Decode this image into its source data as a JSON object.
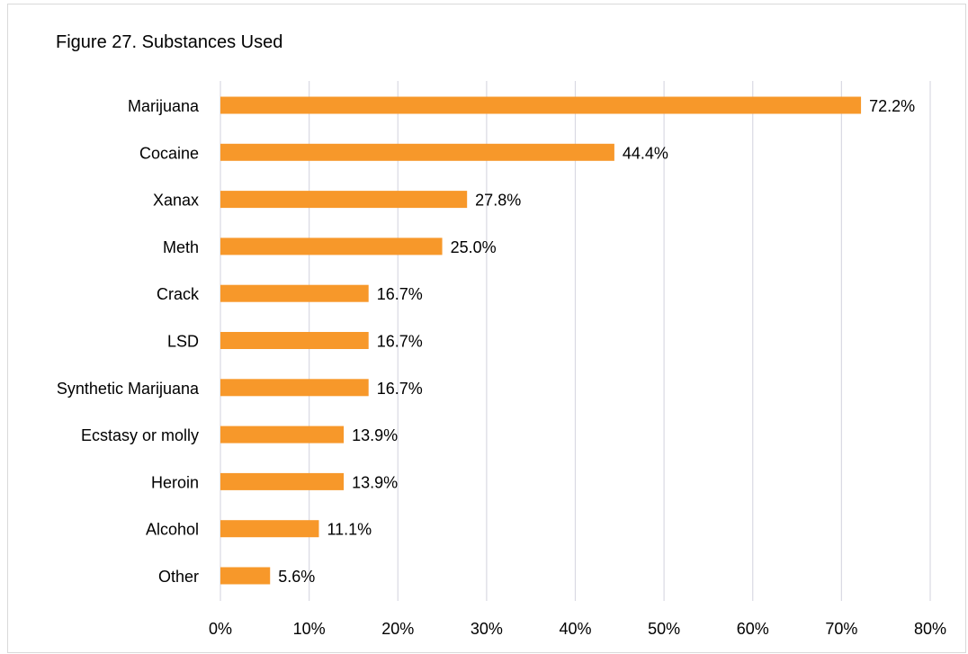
{
  "chart_data": {
    "type": "bar",
    "orientation": "horizontal",
    "title": "Figure 27. Substances Used",
    "xlabel": "",
    "ylabel": "",
    "categories": [
      "Marijuana",
      "Cocaine",
      "Xanax",
      "Meth",
      "Crack",
      "LSD",
      "Synthetic Marijuana",
      "Ecstasy or molly",
      "Heroin",
      "Alcohol",
      "Other"
    ],
    "values": [
      72.2,
      44.4,
      27.8,
      25.0,
      16.7,
      16.7,
      16.7,
      13.9,
      13.9,
      11.1,
      5.6
    ],
    "data_labels": [
      "72.2%",
      "44.4%",
      "27.8%",
      "25.0%",
      "16.7%",
      "16.7%",
      "16.7%",
      "13.9%",
      "13.9%",
      "11.1%",
      "5.6%"
    ],
    "xlim": [
      0,
      80
    ],
    "x_ticks": [
      0,
      10,
      20,
      30,
      40,
      50,
      60,
      70,
      80
    ],
    "x_tick_labels": [
      "0%",
      "10%",
      "20%",
      "30%",
      "40%",
      "50%",
      "60%",
      "70%",
      "80%"
    ],
    "grid": "vertical",
    "legend": "none",
    "bar_color": "#f7982a",
    "grid_color": "#d9d9e3"
  }
}
